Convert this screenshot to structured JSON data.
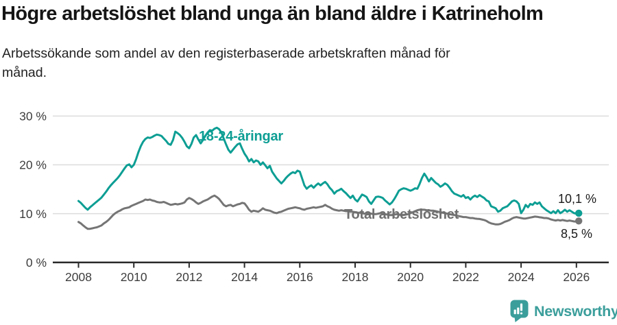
{
  "chart_data": {
    "type": "line",
    "title": "Högre arbetslöshet bland unga än bland äldre i Katrineholm",
    "subtitle_lines": [
      "Arbetssökande som andel av den registerbaserade arbetskraften månad för",
      "månad."
    ],
    "frequency": "monthly",
    "x_start_year": 2008,
    "xlim": [
      2008,
      2026.2
    ],
    "ylim": [
      0,
      30
    ],
    "grid": "horizontal",
    "legend_position": "inline-labels",
    "x_ticks": [
      2008,
      2010,
      2012,
      2014,
      2016,
      2018,
      2020,
      2022,
      2024,
      2026
    ],
    "y_ticks": [
      {
        "value": 30,
        "label": "30 %"
      },
      {
        "value": 20,
        "label": "20 %"
      },
      {
        "value": 10,
        "label": "10 %"
      },
      {
        "value": 0,
        "label": "0 %"
      }
    ],
    "colors": {
      "grid": "#dcdcdc",
      "axis": "#2a2a2a",
      "tick_text": "#3d3d3d"
    },
    "series": [
      {
        "name": "18-24-åringar",
        "color": "#0d9e94",
        "end_label": "10,1 %",
        "end_value": 10.1,
        "values": [
          12.6,
          12.2,
          11.7,
          11.2,
          10.8,
          11.3,
          11.7,
          12.1,
          12.5,
          12.9,
          13.3,
          13.9,
          14.5,
          15.2,
          15.8,
          16.3,
          16.8,
          17.3,
          17.9,
          18.6,
          19.3,
          19.9,
          20.1,
          19.5,
          20.0,
          21.2,
          22.6,
          23.8,
          24.7,
          25.3,
          25.6,
          25.5,
          25.7,
          26.0,
          26.2,
          26.1,
          25.9,
          25.4,
          24.9,
          24.3,
          24.1,
          25.1,
          26.8,
          26.5,
          26.1,
          25.5,
          24.7,
          23.8,
          23.4,
          24.3,
          25.6,
          26.1,
          25.2,
          24.4,
          25.1,
          25.9,
          26.6,
          27.1,
          27.0,
          27.4,
          27.6,
          27.3,
          26.6,
          25.4,
          24.2,
          23.1,
          22.5,
          23.1,
          23.7,
          24.2,
          24.4,
          23.3,
          22.3,
          21.6,
          20.7,
          21.2,
          20.5,
          20.9,
          20.7,
          20.0,
          20.5,
          19.9,
          19.3,
          19.8,
          18.6,
          17.9,
          17.2,
          16.7,
          16.2,
          16.7,
          17.3,
          17.8,
          18.2,
          18.5,
          18.3,
          18.8,
          18.6,
          17.2,
          15.8,
          15.1,
          15.5,
          15.8,
          15.3,
          15.8,
          16.2,
          15.8,
          16.2,
          16.5,
          16.0,
          15.3,
          14.8,
          14.1,
          14.6,
          14.8,
          15.1,
          14.6,
          14.2,
          13.7,
          13.2,
          13.7,
          12.9,
          12.5,
          13.2,
          13.9,
          13.7,
          13.4,
          12.5,
          12.0,
          12.7,
          13.4,
          13.5,
          13.4,
          13.2,
          12.7,
          12.3,
          11.9,
          12.3,
          13.0,
          13.8,
          14.7,
          15.0,
          15.2,
          15.1,
          14.9,
          14.7,
          14.9,
          15.2,
          15.1,
          16.1,
          17.3,
          18.2,
          17.5,
          16.6,
          17.3,
          16.8,
          16.3,
          16.0,
          15.5,
          15.8,
          16.2,
          15.9,
          15.3,
          14.6,
          14.1,
          13.9,
          13.7,
          13.5,
          13.8,
          13.2,
          13.4,
          12.9,
          13.4,
          13.7,
          13.4,
          13.8,
          13.5,
          13.2,
          12.7,
          12.5,
          11.5,
          11.3,
          11.1,
          10.4,
          10.6,
          11.1,
          11.3,
          11.5,
          12.0,
          12.5,
          12.7,
          12.5,
          12.0,
          10.1,
          10.8,
          11.8,
          11.3,
          12.0,
          11.8,
          12.3,
          12.0,
          12.3,
          11.5,
          11.1,
          10.7,
          10.4,
          10.1,
          10.5,
          10.1,
          10.7,
          10.1,
          10.4,
          10.8,
          10.4,
          10.7,
          10.4,
          10.1,
          10.0,
          10.1
        ]
      },
      {
        "name": "Total arbetslöshet",
        "color": "#757575",
        "label_color": "#6f6f6f",
        "end_label": "8,5 %",
        "end_value": 8.5,
        "values": [
          8.3,
          8.0,
          7.6,
          7.2,
          6.9,
          6.9,
          7.0,
          7.1,
          7.2,
          7.4,
          7.6,
          8.0,
          8.3,
          8.7,
          9.2,
          9.7,
          10.1,
          10.4,
          10.6,
          10.9,
          11.1,
          11.2,
          11.3,
          11.6,
          11.8,
          12.0,
          12.2,
          12.4,
          12.6,
          12.9,
          12.8,
          12.9,
          12.7,
          12.6,
          12.4,
          12.3,
          12.3,
          12.4,
          12.2,
          12.0,
          11.8,
          11.9,
          12.0,
          11.9,
          12.0,
          12.1,
          12.3,
          12.9,
          13.2,
          13.0,
          12.7,
          12.3,
          12.0,
          12.2,
          12.5,
          12.7,
          12.9,
          13.2,
          13.5,
          13.7,
          13.4,
          13.0,
          12.4,
          11.8,
          11.5,
          11.7,
          11.8,
          11.5,
          11.7,
          11.9,
          12.0,
          12.2,
          12.1,
          11.5,
          10.8,
          10.4,
          10.6,
          10.5,
          10.4,
          10.7,
          11.1,
          10.8,
          10.7,
          10.6,
          10.4,
          10.2,
          10.1,
          10.3,
          10.4,
          10.6,
          10.8,
          11.0,
          11.1,
          11.2,
          11.3,
          11.2,
          11.1,
          10.9,
          10.8,
          11.0,
          11.1,
          11.2,
          11.3,
          11.2,
          11.3,
          11.4,
          11.5,
          11.8,
          11.5,
          11.3,
          11.0,
          10.8,
          10.7,
          10.6,
          10.7,
          10.6,
          10.5,
          10.5,
          10.4,
          10.4,
          10.3,
          10.2,
          10.2,
          10.1,
          10.0,
          10.0,
          10.1,
          10.0,
          9.9,
          9.9,
          10.0,
          10.1,
          10.0,
          9.9,
          9.8,
          9.7,
          9.7,
          9.8,
          9.9,
          9.8,
          9.7,
          9.7,
          9.8,
          9.9,
          10.1,
          10.3,
          10.5,
          10.7,
          10.8,
          10.8,
          10.8,
          10.7,
          10.7,
          10.6,
          10.6,
          10.5,
          10.4,
          10.3,
          10.2,
          10.1,
          10.0,
          9.9,
          9.8,
          9.7,
          9.6,
          9.5,
          9.4,
          9.3,
          9.3,
          9.2,
          9.1,
          9.1,
          9.0,
          8.95,
          8.9,
          8.8,
          8.7,
          8.5,
          8.2,
          8.0,
          7.9,
          7.8,
          7.8,
          7.9,
          8.1,
          8.35,
          8.5,
          8.7,
          9.0,
          9.2,
          9.3,
          9.2,
          9.1,
          9.0,
          9.0,
          9.1,
          9.2,
          9.3,
          9.4,
          9.35,
          9.25,
          9.2,
          9.1,
          9.1,
          9.0,
          8.8,
          8.7,
          8.6,
          8.7,
          8.6,
          8.7,
          8.6,
          8.5,
          8.6,
          8.5,
          8.4,
          8.35,
          8.5
        ]
      }
    ]
  },
  "branding": {
    "logo_text": "Newsworthy",
    "logo_color": "#3b9e9b"
  }
}
